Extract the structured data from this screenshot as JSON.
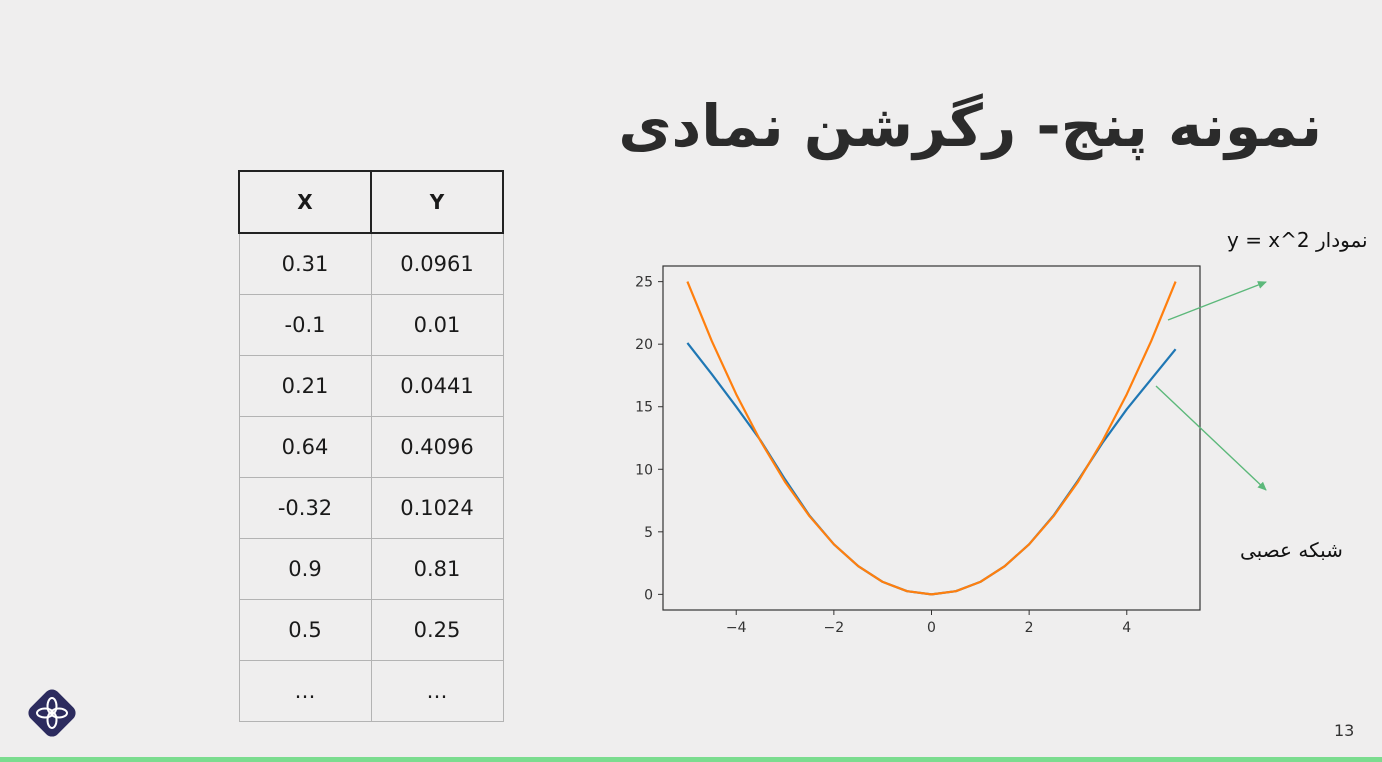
{
  "slide": {
    "title": "نمونه پنج- رگرشن نمادی",
    "page_number": "13"
  },
  "table": {
    "headers": [
      "X",
      "Y"
    ],
    "rows": [
      [
        "0.31",
        "0.0961"
      ],
      [
        "-0.1",
        "0.01"
      ],
      [
        "0.21",
        "0.0441"
      ],
      [
        "0.64",
        "0.4096"
      ],
      [
        "-0.32",
        "0.1024"
      ],
      [
        "0.9",
        "0.81"
      ],
      [
        "0.5",
        "0.25"
      ],
      [
        "…",
        "…"
      ]
    ]
  },
  "annotations": {
    "top": "y = x^2 نمودار",
    "bottom": "شبکه عصبی",
    "arrow_color": "#5cb87a"
  },
  "chart_data": {
    "type": "line",
    "xlim": [
      -5.5,
      5.5
    ],
    "ylim": [
      -1.25,
      26.25
    ],
    "xticks": [
      -4,
      -2,
      0,
      2,
      4
    ],
    "xtick_labels": [
      "−4",
      "−2",
      "0",
      "2",
      "4"
    ],
    "yticks": [
      0,
      5,
      10,
      15,
      20,
      25
    ],
    "ytick_labels": [
      "0",
      "5",
      "10",
      "15",
      "20",
      "25"
    ],
    "grid": false,
    "series": [
      {
        "color": "#1f77b4",
        "x": [
          -5,
          -4.5,
          -4,
          -3.5,
          -3,
          -2.5,
          -2,
          -1.5,
          -1,
          -0.5,
          0,
          0.5,
          1,
          1.5,
          2,
          2.5,
          3,
          3.5,
          4,
          4.5,
          5
        ],
        "y": [
          20.1,
          17.6,
          15.0,
          12.3,
          9.2,
          6.3,
          4.0,
          2.25,
          1.0,
          0.25,
          0,
          0.25,
          1.0,
          2.25,
          4.0,
          6.3,
          9.1,
          12.1,
          14.8,
          17.2,
          19.6
        ]
      },
      {
        "color": "#ff7f0e",
        "x": [
          -5,
          -4.5,
          -4,
          -3.5,
          -3,
          -2.5,
          -2,
          -1.5,
          -1,
          -0.5,
          0,
          0.5,
          1,
          1.5,
          2,
          2.5,
          3,
          3.5,
          4,
          4.5,
          5
        ],
        "y": [
          25,
          20.25,
          16,
          12.25,
          9,
          6.25,
          4,
          2.25,
          1,
          0.25,
          0,
          0.25,
          1,
          2.25,
          4,
          6.25,
          9,
          12.25,
          16,
          20.25,
          25
        ]
      }
    ]
  }
}
